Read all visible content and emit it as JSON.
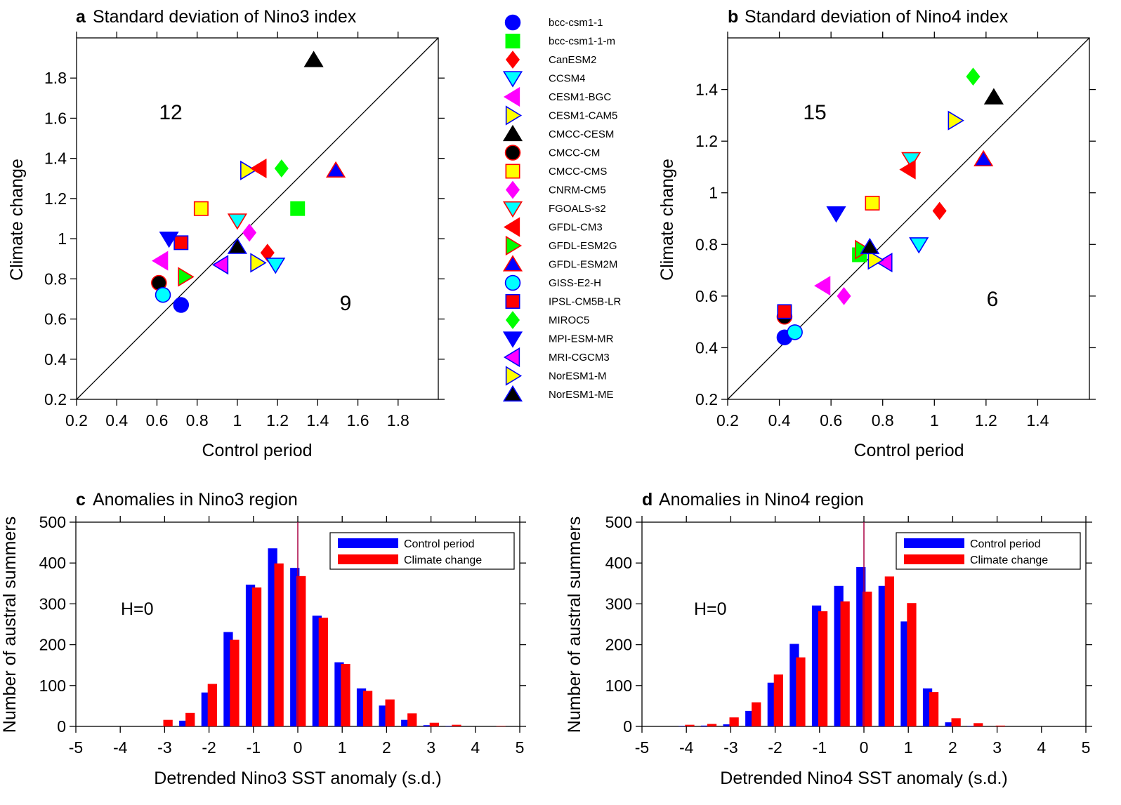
{
  "colors": {
    "blue": "#0000ff",
    "green": "#00ff00",
    "red": "#ff0000",
    "cyan": "#00ffff",
    "magenta": "#ff00ff",
    "yellow": "#ffff00",
    "black": "#000000",
    "control": "#0000ff",
    "climate": "#ff0000",
    "zeroline": "#aa0044"
  },
  "models": [
    {
      "name": "bcc-csm1-1",
      "marker": "circle",
      "fill": "blue",
      "stroke": "blue"
    },
    {
      "name": "bcc-csm1-1-m",
      "marker": "square",
      "fill": "green",
      "stroke": "green"
    },
    {
      "name": "CanESM2",
      "marker": "diamond",
      "fill": "red",
      "stroke": "red"
    },
    {
      "name": "CCSM4",
      "marker": "triangle-down",
      "fill": "cyan",
      "stroke": "blue"
    },
    {
      "name": "CESM1-BGC",
      "marker": "triangle-left",
      "fill": "magenta",
      "stroke": "magenta"
    },
    {
      "name": "CESM1-CAM5",
      "marker": "triangle-right",
      "fill": "yellow",
      "stroke": "blue"
    },
    {
      "name": "CMCC-CESM",
      "marker": "triangle-up",
      "fill": "black",
      "stroke": "black"
    },
    {
      "name": "CMCC-CM",
      "marker": "circle",
      "fill": "black",
      "stroke": "red"
    },
    {
      "name": "CMCC-CMS",
      "marker": "square",
      "fill": "yellow",
      "stroke": "red"
    },
    {
      "name": "CNRM-CM5",
      "marker": "diamond",
      "fill": "magenta",
      "stroke": "magenta"
    },
    {
      "name": "FGOALS-s2",
      "marker": "triangle-down",
      "fill": "cyan",
      "stroke": "red"
    },
    {
      "name": "GFDL-CM3",
      "marker": "triangle-left",
      "fill": "red",
      "stroke": "red"
    },
    {
      "name": "GFDL-ESM2G",
      "marker": "triangle-right",
      "fill": "green",
      "stroke": "red"
    },
    {
      "name": "GFDL-ESM2M",
      "marker": "triangle-up",
      "fill": "blue",
      "stroke": "red"
    },
    {
      "name": "GISS-E2-H",
      "marker": "circle",
      "fill": "cyan",
      "stroke": "blue"
    },
    {
      "name": "IPSL-CM5B-LR",
      "marker": "square",
      "fill": "red",
      "stroke": "blue"
    },
    {
      "name": "MIROC5",
      "marker": "diamond",
      "fill": "green",
      "stroke": "green"
    },
    {
      "name": "MPI-ESM-MR",
      "marker": "triangle-down",
      "fill": "blue",
      "stroke": "blue"
    },
    {
      "name": "MRI-CGCM3",
      "marker": "triangle-left",
      "fill": "magenta",
      "stroke": "blue"
    },
    {
      "name": "NorESM1-M",
      "marker": "triangle-right",
      "fill": "yellow",
      "stroke": "blue"
    },
    {
      "name": "NorESM1-ME",
      "marker": "triangle-up",
      "fill": "black",
      "stroke": "blue"
    }
  ],
  "chart_data": [
    {
      "id": "a",
      "type": "scatter",
      "letter": "a",
      "title": "Standard deviation of Nino3 index",
      "xlabel": "Control period",
      "ylabel": "Climate change",
      "xlim": [
        0.2,
        2.0
      ],
      "ylim": [
        0.2,
        2.0
      ],
      "xticks": [
        "0.2",
        "0.4",
        "0.6",
        "0.8",
        "1",
        "1.2",
        "1.4",
        "1.6",
        "1.8"
      ],
      "yticks": [
        "0.2",
        "0.4",
        "0.6",
        "0.8",
        "1",
        "1.2",
        "1.4",
        "1.6",
        "1.8"
      ],
      "xtick_values": [
        0.2,
        0.4,
        0.6,
        0.8,
        1.0,
        1.2,
        1.4,
        1.6,
        1.8
      ],
      "ytick_values": [
        0.2,
        0.4,
        0.6,
        0.8,
        1.0,
        1.2,
        1.4,
        1.6,
        1.8
      ],
      "diagonal": true,
      "count_above": "12",
      "count_below": "9",
      "points": [
        {
          "model": "bcc-csm1-1",
          "x": 0.72,
          "y": 0.67
        },
        {
          "model": "bcc-csm1-1-m",
          "x": 1.3,
          "y": 1.15
        },
        {
          "model": "CanESM2",
          "x": 1.15,
          "y": 0.93
        },
        {
          "model": "CCSM4",
          "x": 1.19,
          "y": 0.87
        },
        {
          "model": "CESM1-BGC",
          "x": 0.62,
          "y": 0.89
        },
        {
          "model": "CESM1-CAM5",
          "x": 1.05,
          "y": 1.34
        },
        {
          "model": "CMCC-CESM",
          "x": 1.38,
          "y": 1.89
        },
        {
          "model": "CMCC-CM",
          "x": 0.61,
          "y": 0.78
        },
        {
          "model": "CMCC-CMS",
          "x": 0.82,
          "y": 1.15
        },
        {
          "model": "CNRM-CM5",
          "x": 1.06,
          "y": 1.03
        },
        {
          "model": "FGOALS-s2",
          "x": 1.0,
          "y": 1.09
        },
        {
          "model": "GFDL-CM3",
          "x": 1.11,
          "y": 1.35
        },
        {
          "model": "GFDL-ESM2G",
          "x": 0.74,
          "y": 0.81
        },
        {
          "model": "GFDL-ESM2M",
          "x": 1.49,
          "y": 1.34
        },
        {
          "model": "GISS-E2-H",
          "x": 0.63,
          "y": 0.72
        },
        {
          "model": "IPSL-CM5B-LR",
          "x": 0.72,
          "y": 0.98
        },
        {
          "model": "MIROC5",
          "x": 1.22,
          "y": 1.35
        },
        {
          "model": "MPI-ESM-MR",
          "x": 0.66,
          "y": 1.0
        },
        {
          "model": "MRI-CGCM3",
          "x": 0.92,
          "y": 0.87
        },
        {
          "model": "NorESM1-M",
          "x": 1.1,
          "y": 0.88
        },
        {
          "model": "NorESM1-ME",
          "x": 1.0,
          "y": 0.96
        }
      ]
    },
    {
      "id": "b",
      "type": "scatter",
      "letter": "b",
      "title": "Standard deviation of Nino4 index",
      "xlabel": "Control period",
      "ylabel": "Climate change",
      "xlim": [
        0.2,
        1.6
      ],
      "ylim": [
        0.2,
        1.6
      ],
      "xticks": [
        "0.2",
        "0.4",
        "0.6",
        "0.8",
        "1",
        "1.2",
        "1.4"
      ],
      "yticks": [
        "0.2",
        "0.4",
        "0.6",
        "0.8",
        "1",
        "1.2",
        "1.4"
      ],
      "xtick_values": [
        0.2,
        0.4,
        0.6,
        0.8,
        1.0,
        1.2,
        1.4
      ],
      "ytick_values": [
        0.2,
        0.4,
        0.6,
        0.8,
        1.0,
        1.2,
        1.4
      ],
      "diagonal": true,
      "count_above": "15",
      "count_below": "6",
      "points": [
        {
          "model": "bcc-csm1-1",
          "x": 0.42,
          "y": 0.44
        },
        {
          "model": "bcc-csm1-1-m",
          "x": 0.71,
          "y": 0.76
        },
        {
          "model": "CanESM2",
          "x": 1.02,
          "y": 0.93
        },
        {
          "model": "CCSM4",
          "x": 0.94,
          "y": 0.8
        },
        {
          "model": "CESM1-BGC",
          "x": 0.57,
          "y": 0.64
        },
        {
          "model": "CESM1-CAM5",
          "x": 1.08,
          "y": 1.28
        },
        {
          "model": "CMCC-CESM",
          "x": 1.23,
          "y": 1.37
        },
        {
          "model": "CMCC-CM",
          "x": 0.42,
          "y": 0.52
        },
        {
          "model": "CMCC-CMS",
          "x": 0.76,
          "y": 0.96
        },
        {
          "model": "CNRM-CM5",
          "x": 0.65,
          "y": 0.6
        },
        {
          "model": "FGOALS-s2",
          "x": 0.91,
          "y": 1.13
        },
        {
          "model": "GFDL-CM3",
          "x": 0.9,
          "y": 1.09
        },
        {
          "model": "GFDL-ESM2G",
          "x": 0.72,
          "y": 0.78
        },
        {
          "model": "GFDL-ESM2M",
          "x": 1.19,
          "y": 1.13
        },
        {
          "model": "GISS-E2-H",
          "x": 0.46,
          "y": 0.46
        },
        {
          "model": "IPSL-CM5B-LR",
          "x": 0.42,
          "y": 0.54
        },
        {
          "model": "MIROC5",
          "x": 1.15,
          "y": 1.45
        },
        {
          "model": "MPI-ESM-MR",
          "x": 0.62,
          "y": 0.92
        },
        {
          "model": "MRI-CGCM3",
          "x": 0.81,
          "y": 0.73
        },
        {
          "model": "NorESM1-M",
          "x": 0.77,
          "y": 0.74
        },
        {
          "model": "NorESM1-ME",
          "x": 0.75,
          "y": 0.79
        }
      ]
    },
    {
      "id": "c",
      "type": "bar",
      "letter": "c",
      "title": "Anomalies in Nino3 region",
      "xlabel": "Detrended Nino3 SST anomaly (s.d.)",
      "ylabel": "Number of austral summers",
      "xlim": [
        -5,
        5
      ],
      "ylim": [
        0,
        500
      ],
      "xticks": [
        "-5",
        "-4",
        "-3",
        "-2",
        "-1",
        "0",
        "1",
        "2",
        "3",
        "4",
        "5"
      ],
      "yticks": [
        "0",
        "100",
        "200",
        "300",
        "400",
        "500"
      ],
      "xtick_values": [
        -5,
        -4,
        -3,
        -2,
        -1,
        0,
        1,
        2,
        3,
        4,
        5
      ],
      "ytick_values": [
        0,
        100,
        200,
        300,
        400,
        500
      ],
      "annotation": "H=0",
      "bin_width": 0.5,
      "bin_centers": [
        -3.0,
        -2.5,
        -2.0,
        -1.5,
        -1.0,
        -0.5,
        0.0,
        0.5,
        1.0,
        1.5,
        2.0,
        2.5,
        3.0,
        3.5,
        4.0,
        4.5
      ],
      "series": [
        {
          "name": "Control period",
          "color": "control",
          "values": [
            0,
            14,
            83,
            231,
            347,
            436,
            388,
            271,
            157,
            93,
            51,
            16,
            3,
            1,
            0,
            0
          ]
        },
        {
          "name": "Climate change",
          "color": "climate",
          "values": [
            16,
            33,
            104,
            212,
            340,
            399,
            368,
            266,
            153,
            87,
            66,
            32,
            9,
            4,
            0,
            1
          ]
        }
      ],
      "legend_position": "top-right"
    },
    {
      "id": "d",
      "type": "bar",
      "letter": "d",
      "title": "Anomalies in Nino4 region",
      "xlabel": "Detrended Nino4 SST anomaly (s.d.)",
      "ylabel": "Number of austral summers",
      "xlim": [
        -5,
        5
      ],
      "ylim": [
        0,
        500
      ],
      "xticks": [
        "-5",
        "-4",
        "-3",
        "-2",
        "-1",
        "0",
        "1",
        "2",
        "3",
        "4",
        "5"
      ],
      "yticks": [
        "0",
        "100",
        "200",
        "300",
        "400",
        "500"
      ],
      "xtick_values": [
        -5,
        -4,
        -3,
        -2,
        -1,
        0,
        1,
        2,
        3,
        4,
        5
      ],
      "ytick_values": [
        0,
        100,
        200,
        300,
        400,
        500
      ],
      "annotation": "H=0",
      "bin_width": 0.5,
      "bin_centers": [
        -4.0,
        -3.5,
        -3.0,
        -2.5,
        -2.0,
        -1.5,
        -1.0,
        -0.5,
        0.0,
        0.5,
        1.0,
        1.5,
        2.0,
        2.5,
        3.0
      ],
      "series": [
        {
          "name": "Control period",
          "color": "control",
          "values": [
            1,
            2,
            5,
            38,
            107,
            202,
            296,
            344,
            390,
            344,
            257,
            93,
            10,
            1,
            0
          ]
        },
        {
          "name": "Climate change",
          "color": "climate",
          "values": [
            4,
            6,
            22,
            59,
            127,
            169,
            282,
            306,
            330,
            367,
            302,
            84,
            20,
            8,
            2
          ]
        }
      ],
      "legend_position": "top-right"
    }
  ]
}
